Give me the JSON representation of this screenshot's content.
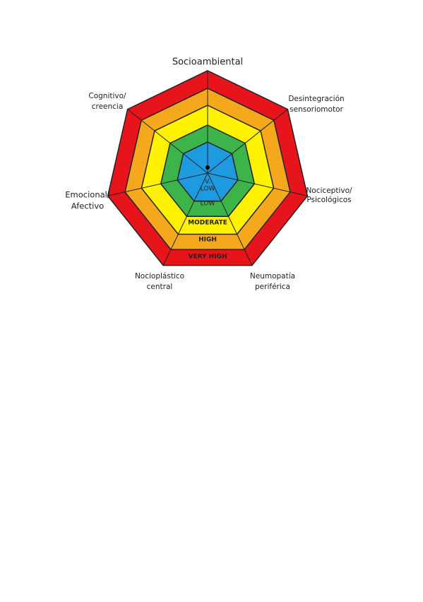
{
  "axes": [
    {
      "lines": [
        "Socioambiental"
      ]
    },
    {
      "lines": [
        "Desintegración",
        "sensoriomotor"
      ]
    },
    {
      "lines": [
        "Nociceptivo/",
        "Psicológicos"
      ]
    },
    {
      "lines": [
        "Neumopatía",
        "periférica"
      ]
    },
    {
      "lines": [
        "Nocioplástico",
        "central"
      ]
    },
    {
      "lines": [
        "Emocional/",
        "Afectivo"
      ]
    },
    {
      "lines": [
        "Cognitivo/",
        "creencia"
      ]
    }
  ],
  "levels": [
    {
      "lines": [
        "V.",
        "LOW"
      ]
    },
    {
      "lines": [
        "LOW"
      ]
    },
    {
      "lines": [
        "MODERATE"
      ]
    },
    {
      "lines": [
        "HIGH"
      ]
    },
    {
      "lines": [
        "VERY HIGH"
      ]
    }
  ]
}
